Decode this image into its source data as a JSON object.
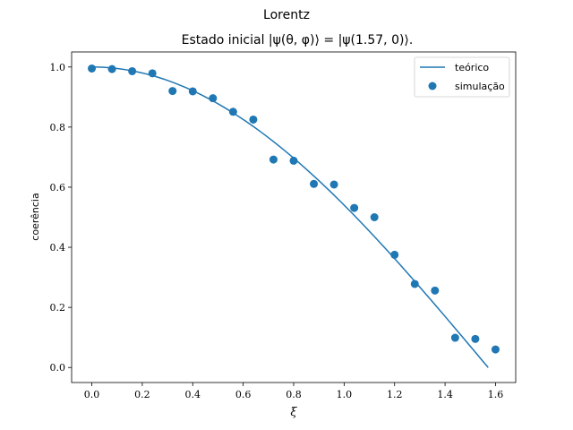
{
  "chart_data": {
    "type": "line",
    "title": "Lorentz",
    "subtitle": "Estado inicial |ψ(θ, φ)⟩ = |ψ(1.57, 0)⟩.",
    "xlabel": "ξ",
    "ylabel": "coerência",
    "xlim": [
      -0.08,
      1.68
    ],
    "ylim": [
      -0.05,
      1.05
    ],
    "xticks": [
      "0.0",
      "0.2",
      "0.4",
      "0.6",
      "0.8",
      "1.0",
      "1.2",
      "1.4",
      "1.6"
    ],
    "yticks": [
      "0.0",
      "0.2",
      "0.4",
      "0.6",
      "0.8",
      "1.0"
    ],
    "grid": false,
    "legend_position": "top-right",
    "colors": {
      "series": "#1f77b4",
      "axes": "#000000"
    },
    "series": [
      {
        "name": "teórico",
        "type": "line",
        "equation": "cos(ξ)",
        "x_range": [
          0,
          1.571
        ],
        "samples": 80
      },
      {
        "name": "simulação",
        "type": "scatter",
        "x": [
          0.0,
          0.08,
          0.16,
          0.24,
          0.32,
          0.4,
          0.48,
          0.56,
          0.64,
          0.72,
          0.8,
          0.88,
          0.96,
          1.04,
          1.12,
          1.2,
          1.28,
          1.36,
          1.44,
          1.52,
          1.6
        ],
        "y": [
          0.995,
          0.993,
          0.986,
          0.979,
          0.92,
          0.919,
          0.896,
          0.851,
          0.825,
          0.692,
          0.688,
          0.611,
          0.609,
          0.531,
          0.5,
          0.375,
          0.278,
          0.256,
          0.099,
          0.095,
          0.06
        ]
      }
    ]
  }
}
